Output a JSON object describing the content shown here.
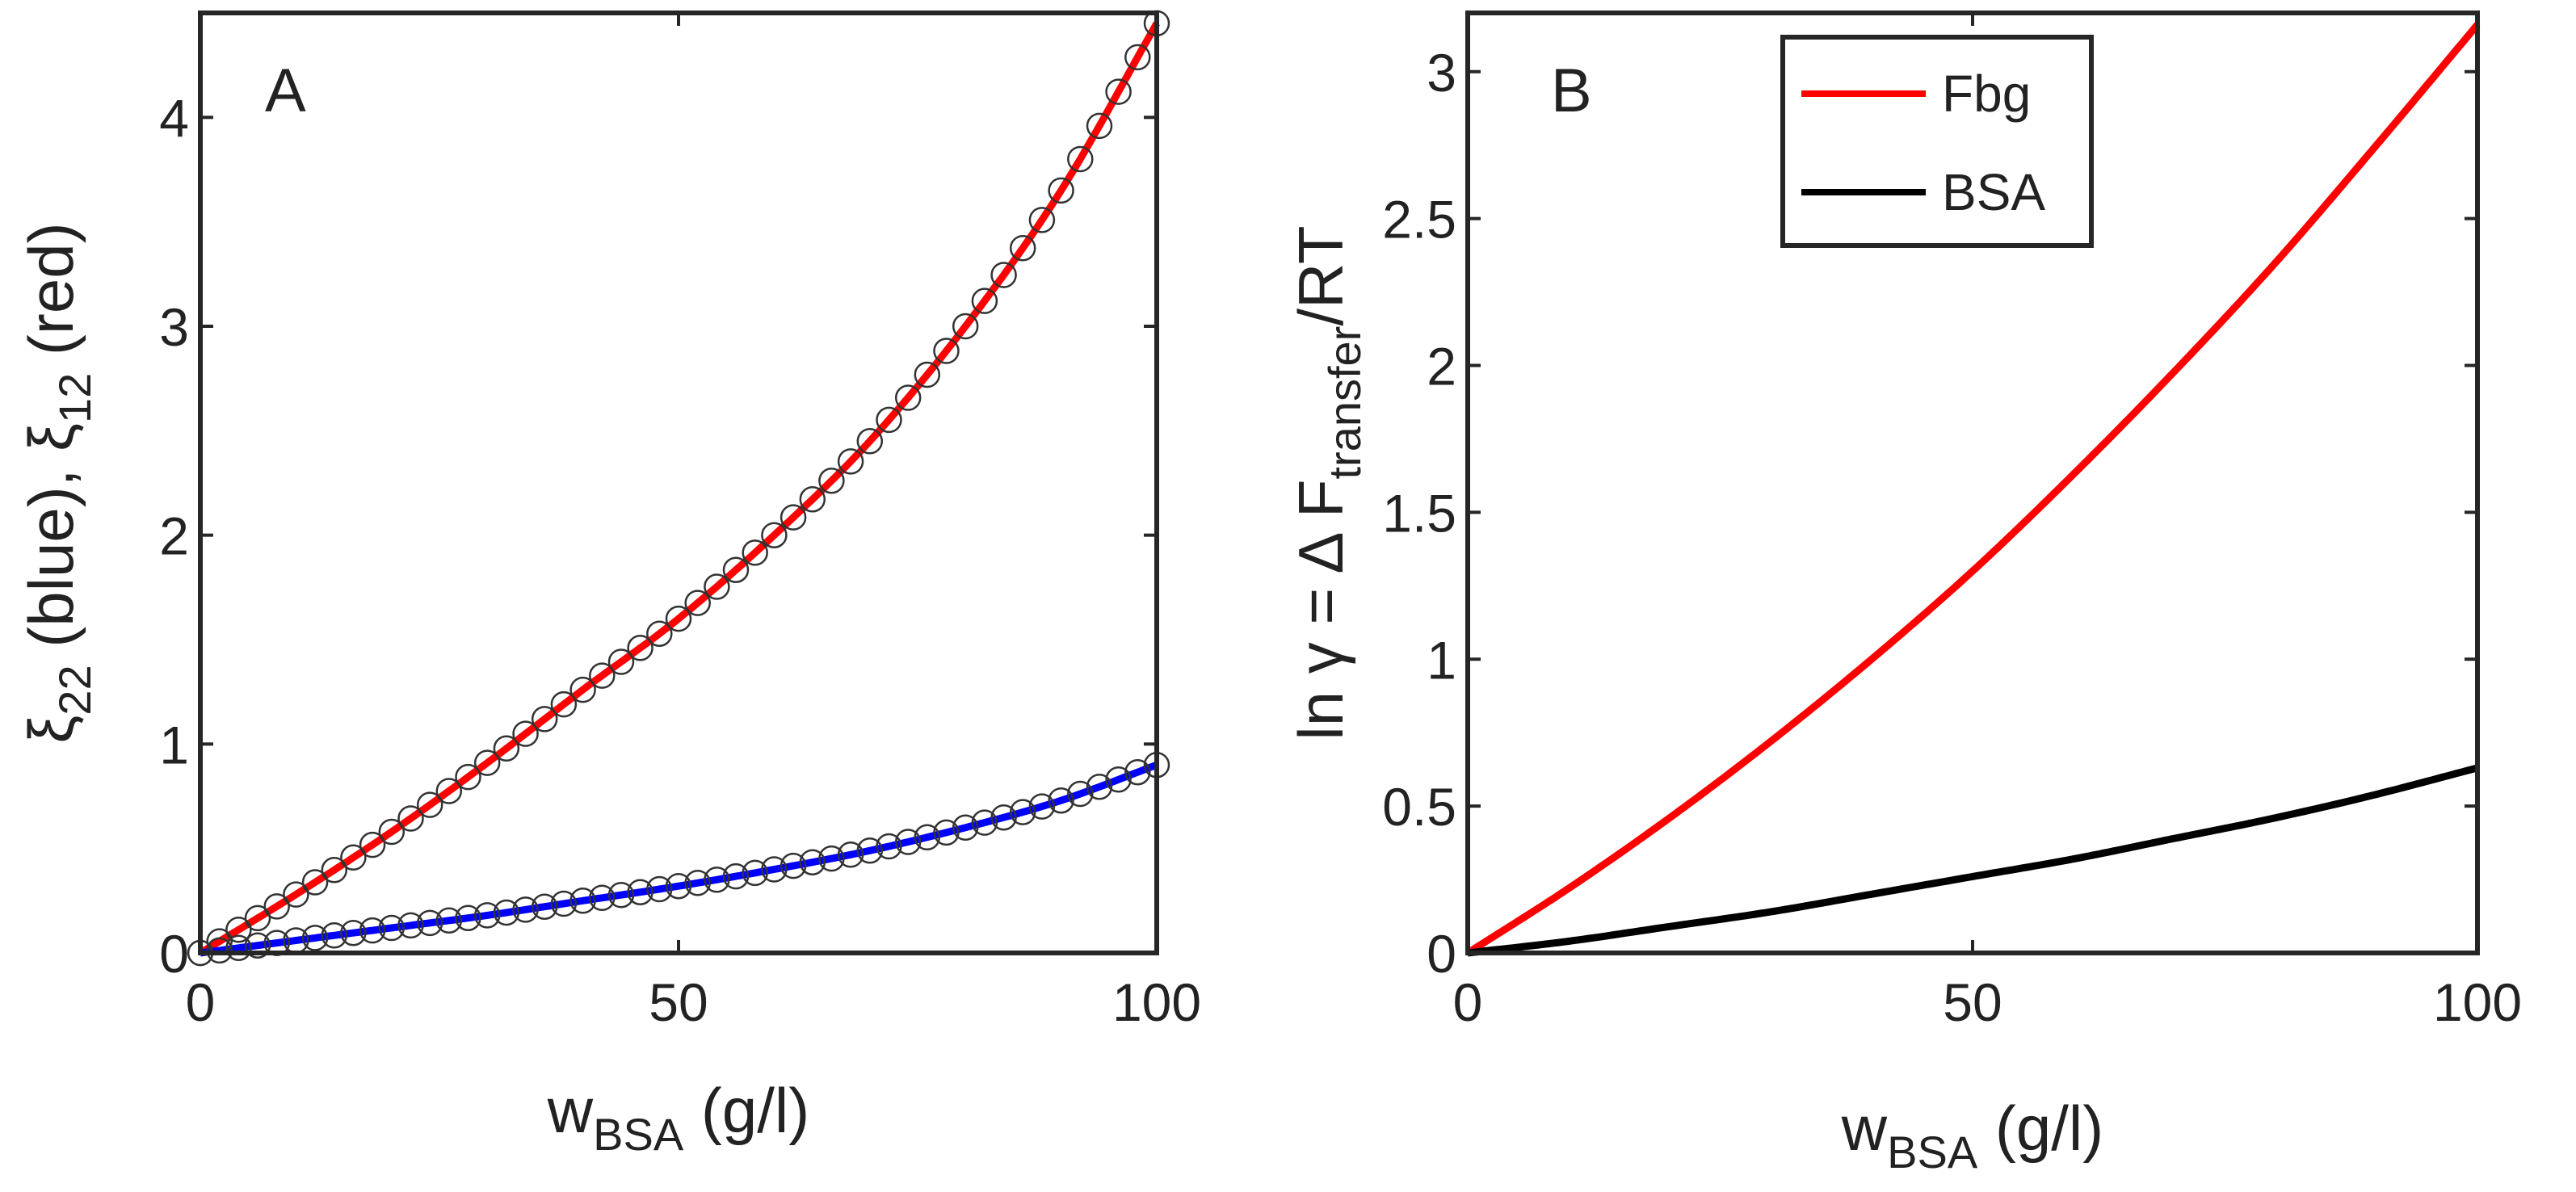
{
  "chart_data": [
    {
      "type": "line",
      "panel_label": "A",
      "xlabel": {
        "base": "w",
        "sub": "BSA",
        "rest": " (g/l)"
      },
      "ylabel": {
        "xi1": "ξ",
        "sub1": "22",
        "mid": " (blue), ",
        "xi2": "ξ",
        "sub2": "12",
        "end": " (red)"
      },
      "xlim": [
        0,
        100
      ],
      "ylim": [
        0,
        4.5
      ],
      "xticks": [
        0,
        50,
        100
      ],
      "yticks": [
        0,
        1,
        2,
        3,
        4
      ],
      "xtick_labels": [
        "0",
        "50",
        "100"
      ],
      "ytick_labels": [
        "0",
        "1",
        "2",
        "3",
        "4"
      ],
      "grid": false,
      "series": [
        {
          "name": "xi12 (red)",
          "color": "#ff0000",
          "style": "line",
          "x": [
            0,
            10,
            20,
            30,
            40,
            50,
            60,
            70,
            80,
            90,
            100
          ],
          "y": [
            0,
            0.28,
            0.58,
            0.91,
            1.26,
            1.6,
            2.0,
            2.45,
            3.0,
            3.65,
            4.45
          ]
        },
        {
          "name": "xi22 (blue)",
          "color": "#0000ff",
          "style": "line",
          "x": [
            0,
            10,
            20,
            30,
            40,
            50,
            60,
            70,
            80,
            90,
            100
          ],
          "y": [
            0,
            0.06,
            0.12,
            0.18,
            0.25,
            0.32,
            0.4,
            0.49,
            0.6,
            0.73,
            0.9
          ]
        },
        {
          "name": "xi12 markers",
          "color": "#333333",
          "style": "markers",
          "x": [
            0,
            10,
            20,
            30,
            40,
            50,
            60,
            70,
            80,
            90,
            100
          ],
          "y": [
            0,
            0.28,
            0.58,
            0.91,
            1.26,
            1.6,
            2.0,
            2.45,
            3.0,
            3.65,
            4.45
          ]
        },
        {
          "name": "xi22 markers",
          "color": "#333333",
          "style": "markers",
          "x": [
            0,
            10,
            20,
            30,
            40,
            50,
            60,
            70,
            80,
            90,
            100
          ],
          "y": [
            0,
            0.06,
            0.12,
            0.18,
            0.25,
            0.32,
            0.4,
            0.49,
            0.6,
            0.73,
            0.9
          ]
        }
      ]
    },
    {
      "type": "line",
      "panel_label": "B",
      "xlabel": {
        "base": "w",
        "sub": "BSA",
        "rest": " (g/l)"
      },
      "ylabel": {
        "pre": "ln γ = Δ F",
        "sub": "transfer",
        "post": "/RT"
      },
      "xlim": [
        0,
        100
      ],
      "ylim": [
        0,
        3.2
      ],
      "xticks": [
        0,
        50,
        100
      ],
      "yticks": [
        0,
        0.5,
        1,
        1.5,
        2,
        2.5,
        3
      ],
      "xtick_labels": [
        "0",
        "50",
        "100"
      ],
      "ytick_labels": [
        "0",
        "0.5",
        "1",
        "1.5",
        "2",
        "2.5",
        "3"
      ],
      "grid": false,
      "legend_position": "top-center",
      "series": [
        {
          "name": "Fbg",
          "color": "#ff0000",
          "style": "line",
          "x": [
            0,
            10,
            20,
            30,
            40,
            50,
            60,
            70,
            80,
            90,
            100
          ],
          "y": [
            0,
            0.22,
            0.46,
            0.72,
            1.0,
            1.3,
            1.63,
            1.98,
            2.35,
            2.75,
            3.16
          ]
        },
        {
          "name": "BSA",
          "color": "#000000",
          "style": "line",
          "x": [
            0,
            10,
            20,
            30,
            40,
            50,
            60,
            70,
            80,
            90,
            100
          ],
          "y": [
            0,
            0.04,
            0.09,
            0.14,
            0.2,
            0.26,
            0.32,
            0.39,
            0.46,
            0.54,
            0.63
          ]
        }
      ]
    }
  ]
}
